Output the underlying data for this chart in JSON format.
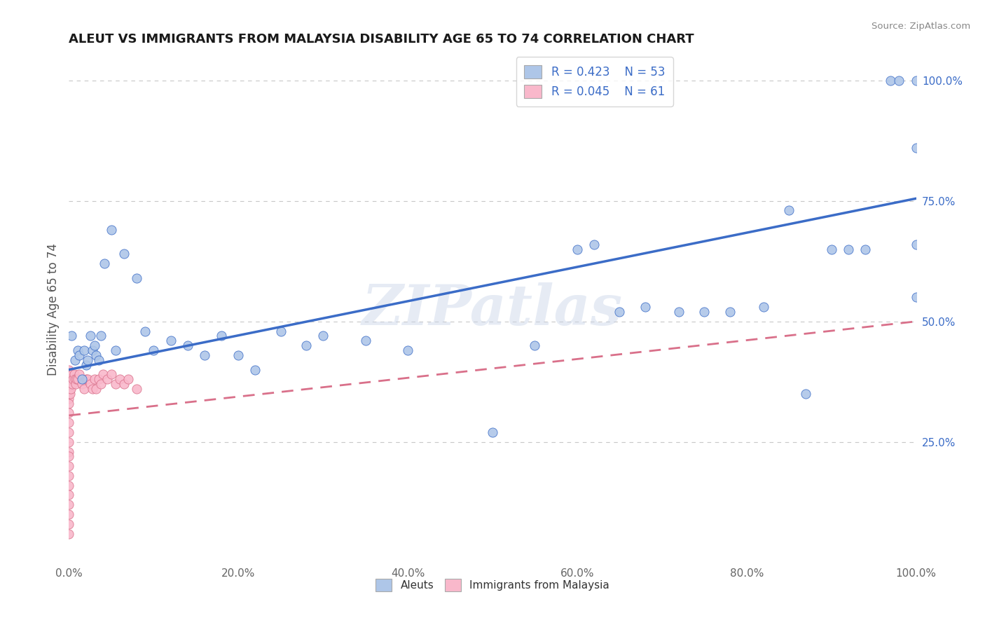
{
  "title": "ALEUT VS IMMIGRANTS FROM MALAYSIA DISABILITY AGE 65 TO 74 CORRELATION CHART",
  "source": "Source: ZipAtlas.com",
  "ylabel": "Disability Age 65 to 74",
  "watermark": "ZIPatlas",
  "legend_r1": "R = 0.423",
  "legend_n1": "N = 53",
  "legend_r2": "R = 0.045",
  "legend_n2": "N = 61",
  "aleut_color": "#aec6e8",
  "malaysia_color": "#f9b8cb",
  "trend_blue": "#3b6cc7",
  "trend_pink": "#d9708a",
  "aleut_x": [
    0.003,
    0.007,
    0.01,
    0.012,
    0.015,
    0.018,
    0.02,
    0.022,
    0.025,
    0.028,
    0.03,
    0.032,
    0.035,
    0.038,
    0.042,
    0.05,
    0.055,
    0.065,
    0.08,
    0.09,
    0.1,
    0.12,
    0.14,
    0.16,
    0.18,
    0.2,
    0.22,
    0.25,
    0.28,
    0.3,
    0.35,
    0.4,
    0.5,
    0.55,
    0.6,
    0.62,
    0.65,
    0.68,
    0.72,
    0.75,
    0.78,
    0.82,
    0.85,
    0.87,
    0.9,
    0.92,
    0.94,
    0.97,
    0.98,
    1.0,
    1.0,
    1.0,
    1.0
  ],
  "aleut_y": [
    0.47,
    0.42,
    0.44,
    0.43,
    0.38,
    0.44,
    0.41,
    0.42,
    0.47,
    0.44,
    0.45,
    0.43,
    0.42,
    0.47,
    0.62,
    0.69,
    0.44,
    0.64,
    0.59,
    0.48,
    0.44,
    0.46,
    0.45,
    0.43,
    0.47,
    0.43,
    0.4,
    0.48,
    0.45,
    0.47,
    0.46,
    0.44,
    0.27,
    0.45,
    0.65,
    0.66,
    0.52,
    0.53,
    0.52,
    0.52,
    0.52,
    0.53,
    0.73,
    0.35,
    0.65,
    0.65,
    0.65,
    1.0,
    1.0,
    1.0,
    0.66,
    0.86,
    0.55
  ],
  "malaysia_x": [
    0.0,
    0.0,
    0.0,
    0.0,
    0.0,
    0.0,
    0.0,
    0.0,
    0.0,
    0.0,
    0.0,
    0.0,
    0.0,
    0.0,
    0.0,
    0.0,
    0.0,
    0.0,
    0.0,
    0.0,
    0.0,
    0.0,
    0.0,
    0.0,
    0.0,
    0.0,
    0.0,
    0.001,
    0.001,
    0.001,
    0.001,
    0.002,
    0.002,
    0.003,
    0.004,
    0.004,
    0.005,
    0.006,
    0.007,
    0.008,
    0.009,
    0.01,
    0.012,
    0.015,
    0.018,
    0.02,
    0.022,
    0.025,
    0.028,
    0.03,
    0.032,
    0.035,
    0.038,
    0.04,
    0.045,
    0.05,
    0.055,
    0.06,
    0.065,
    0.07,
    0.08
  ],
  "malaysia_y": [
    0.36,
    0.37,
    0.38,
    0.39,
    0.35,
    0.34,
    0.33,
    0.31,
    0.29,
    0.27,
    0.25,
    0.23,
    0.22,
    0.2,
    0.18,
    0.16,
    0.14,
    0.12,
    0.1,
    0.08,
    0.38,
    0.39,
    0.4,
    0.36,
    0.35,
    0.37,
    0.06,
    0.37,
    0.38,
    0.36,
    0.35,
    0.38,
    0.36,
    0.38,
    0.37,
    0.39,
    0.38,
    0.39,
    0.38,
    0.37,
    0.38,
    0.38,
    0.39,
    0.37,
    0.36,
    0.38,
    0.38,
    0.37,
    0.36,
    0.38,
    0.36,
    0.38,
    0.37,
    0.39,
    0.38,
    0.39,
    0.37,
    0.38,
    0.37,
    0.38,
    0.36
  ],
  "xlim": [
    0.0,
    1.0
  ],
  "ylim": [
    0.0,
    1.05
  ],
  "xtick_labels": [
    "0.0%",
    "20.0%",
    "40.0%",
    "60.0%",
    "80.0%",
    "100.0%"
  ],
  "xtick_vals": [
    0.0,
    0.2,
    0.4,
    0.6,
    0.8,
    1.0
  ],
  "ytick_labels": [
    "25.0%",
    "50.0%",
    "75.0%",
    "100.0%"
  ],
  "ytick_vals": [
    0.25,
    0.5,
    0.75,
    1.0
  ],
  "aleut_trend_start_y": 0.4,
  "aleut_trend_end_y": 0.755,
  "malaysia_trend_start_y": 0.305,
  "malaysia_trend_end_y": 0.5,
  "bg_color": "#ffffff",
  "grid_color": "#c8c8c8"
}
